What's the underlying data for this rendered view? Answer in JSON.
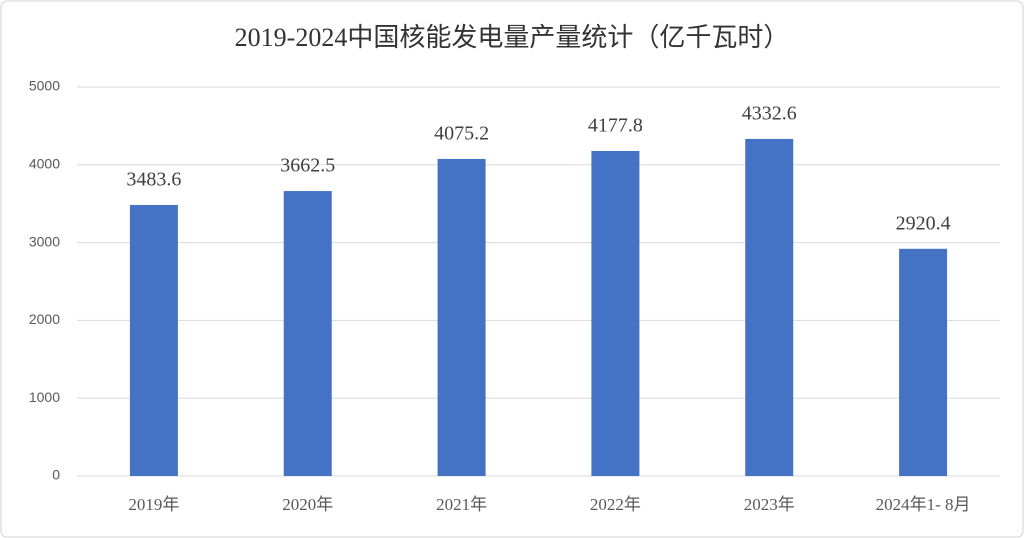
{
  "chart_data": {
    "type": "bar",
    "title": "2019-2024中国核能发电量产量统计（亿千瓦时）",
    "categories": [
      "2019年",
      "2020年",
      "2021年",
      "2022年",
      "2023年",
      "2024年1- 8月"
    ],
    "values": [
      3483.6,
      3662.5,
      4075.2,
      4177.8,
      4332.6,
      2920.4
    ],
    "color": "#4472c4",
    "ylim": [
      0,
      5000
    ],
    "yticks": [
      0,
      1000,
      2000,
      3000,
      4000,
      5000
    ],
    "grid": true
  }
}
